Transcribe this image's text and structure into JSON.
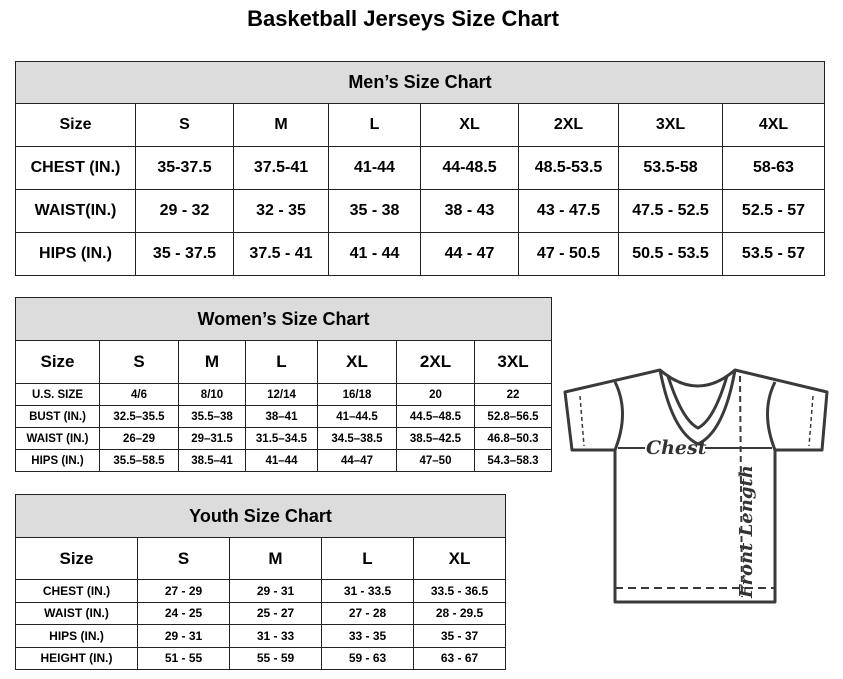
{
  "title": "Basketball Jerseys Size Chart",
  "men": {
    "caption": "Men’s Size Chart",
    "headers": [
      "Size",
      "S",
      "M",
      "L",
      "XL",
      "2XL",
      "3XL",
      "4XL"
    ],
    "rows": [
      [
        "CHEST (IN.)",
        "35-37.5",
        "37.5-41",
        "41-44",
        "44-48.5",
        "48.5-53.5",
        "53.5-58",
        "58-63"
      ],
      [
        "WAIST(IN.)",
        "29 - 32",
        "32 - 35",
        "35 - 38",
        "38 - 43",
        "43 - 47.5",
        "47.5 - 52.5",
        "52.5 - 57"
      ],
      [
        "HIPS (IN.)",
        "35 - 37.5",
        "37.5 - 41",
        "41 - 44",
        "44 - 47",
        "47 - 50.5",
        "50.5 - 53.5",
        "53.5 - 57"
      ]
    ]
  },
  "women": {
    "caption": "Women’s Size Chart",
    "headers": [
      "Size",
      "S",
      "M",
      "L",
      "XL",
      "2XL",
      "3XL"
    ],
    "rows": [
      [
        "U.S. SIZE",
        "4/6",
        "8/10",
        "12/14",
        "16/18",
        "20",
        "22"
      ],
      [
        "BUST (IN.)",
        "32.5–35.5",
        "35.5–38",
        "38–41",
        "41–44.5",
        "44.5–48.5",
        "52.8–56.5"
      ],
      [
        "WAIST (IN.)",
        "26–29",
        "29–31.5",
        "31.5–34.5",
        "34.5–38.5",
        "38.5–42.5",
        "46.8–50.3"
      ],
      [
        "HIPS (IN.)",
        "35.5–58.5",
        "38.5–41",
        "41–44",
        "44–47",
        "47–50",
        "54.3–58.3"
      ]
    ]
  },
  "youth": {
    "caption": "Youth Size Chart",
    "headers": [
      "Size",
      "S",
      "M",
      "L",
      "XL"
    ],
    "rows": [
      [
        "CHEST (IN.)",
        "27 - 29",
        "29 - 31",
        "31 - 33.5",
        "33.5 - 36.5"
      ],
      [
        "WAIST (IN.)",
        "24 - 25",
        "25 - 27",
        "27 - 28",
        "28 - 29.5"
      ],
      [
        "HIPS (IN.)",
        "29 - 31",
        "31 - 33",
        "33 - 35",
        "35 - 37"
      ],
      [
        "HEIGHT (IN.)",
        "51 - 55",
        "55 - 59",
        "59 - 63",
        "63 - 67"
      ]
    ]
  },
  "diagram": {
    "chest_label": "Chest",
    "length_label": "Front Length"
  },
  "colors": {
    "caption_bg": "#dcdcdc",
    "shirt_stroke": "#3a3a3a"
  }
}
